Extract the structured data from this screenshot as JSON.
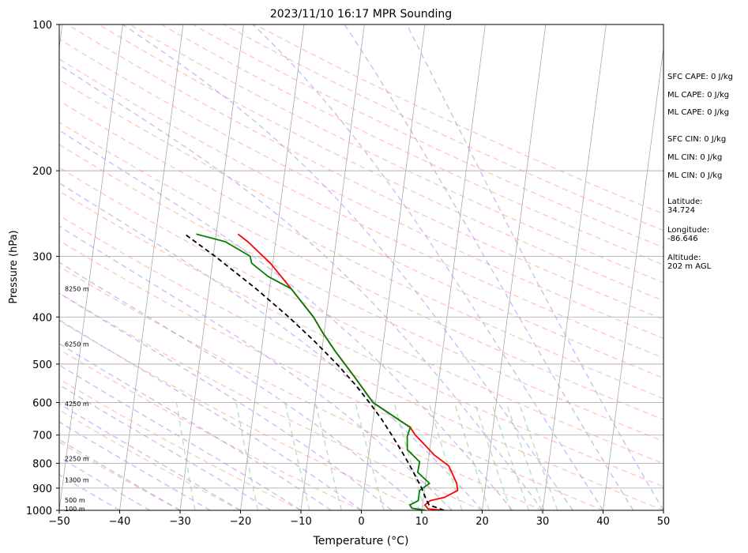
{
  "chart_data": {
    "type": "line",
    "title": "2023/11/10 16:17 MPR Sounding",
    "xlabel": "Temperature (°C)",
    "ylabel": "Pressure (hPa)",
    "xlim": [
      -50,
      50
    ],
    "ylim": [
      1000,
      100
    ],
    "y_scale": "log",
    "skew": "skew-T",
    "grid": true,
    "x_ticks": [
      -50,
      -40,
      -30,
      -20,
      -10,
      0,
      10,
      20,
      30,
      40,
      50
    ],
    "x_tick_labels": [
      "−50",
      "−40",
      "−30",
      "−20",
      "−10",
      "0",
      "10",
      "20",
      "30",
      "40",
      "50"
    ],
    "y_ticks": [
      100,
      200,
      300,
      400,
      500,
      600,
      700,
      800,
      900,
      1000
    ],
    "y_tick_labels": [
      "100",
      "200",
      "300",
      "400",
      "500",
      "600",
      "700",
      "800",
      "900",
      "1000"
    ],
    "height_labels": [
      {
        "text": "8250 m",
        "p": 350
      },
      {
        "text": "6250 m",
        "p": 455
      },
      {
        "text": "4250 m",
        "p": 603
      },
      {
        "text": "2250 m",
        "p": 783
      },
      {
        "text": "1300 m",
        "p": 866
      },
      {
        "text": "500 m",
        "p": 952
      },
      {
        "text": "100 m",
        "p": 992
      }
    ],
    "series": [
      {
        "color": "#ff0000",
        "points": [
          [
            1000,
            13.7
          ],
          [
            993,
            11
          ],
          [
            975,
            10.4
          ],
          [
            955,
            11.2
          ],
          [
            940,
            13.5
          ],
          [
            910,
            15.5
          ],
          [
            880,
            15.2
          ],
          [
            850,
            14.5
          ],
          [
            810,
            13.5
          ],
          [
            770,
            10.9
          ],
          [
            730,
            8.9
          ],
          [
            700,
            7.3
          ],
          [
            675,
            6.3
          ],
          [
            600,
            -0.4
          ],
          [
            530,
            -4.1
          ],
          [
            470,
            -7.8
          ],
          [
            430,
            -10.3
          ],
          [
            400,
            -12.1
          ],
          [
            350,
            -16.4
          ],
          [
            310,
            -20.4
          ],
          [
            280,
            -24.6
          ],
          [
            270,
            -26.4
          ]
        ]
      },
      {
        "color": "#008000",
        "points": [
          [
            1000,
            10.6
          ],
          [
            990,
            8.3
          ],
          [
            975,
            7.9
          ],
          [
            955,
            9.2
          ],
          [
            910,
            9.2
          ],
          [
            880,
            10.7
          ],
          [
            835,
            8.5
          ],
          [
            795,
            8.6
          ],
          [
            750,
            6.3
          ],
          [
            705,
            6.0
          ],
          [
            675,
            6.3
          ],
          [
            600,
            -0.4
          ],
          [
            530,
            -4.1
          ],
          [
            470,
            -7.8
          ],
          [
            430,
            -10.3
          ],
          [
            400,
            -12.1
          ],
          [
            350,
            -16.4
          ],
          [
            330,
            -20.5
          ],
          [
            310,
            -23.5
          ],
          [
            300,
            -23.9
          ],
          [
            280,
            -28.3
          ],
          [
            270,
            -33.3
          ]
        ]
      },
      {
        "color": "#000000",
        "dashed": true,
        "points": [
          [
            1000,
            13.7
          ],
          [
            975,
            11.1
          ],
          [
            950,
            10.5
          ],
          [
            900,
            9.5
          ],
          [
            850,
            8.2
          ],
          [
            800,
            6.8
          ],
          [
            750,
            5.2
          ],
          [
            700,
            3.4
          ],
          [
            650,
            1.4
          ],
          [
            600,
            -1.0
          ],
          [
            550,
            -3.8
          ],
          [
            500,
            -7.2
          ],
          [
            450,
            -11.3
          ],
          [
            400,
            -16.2
          ],
          [
            350,
            -22.2
          ],
          [
            300,
            -29.7
          ],
          [
            270,
            -35.2
          ]
        ]
      }
    ]
  },
  "side_labels": [
    {
      "text": "SFC CAPE: 0 J/kg"
    },
    {
      "text": "ML CAPE: 0 J/kg"
    },
    {
      "text": "ML CAPE: 0 J/kg"
    },
    {
      "text": "SFC CIN: 0 J/kg"
    },
    {
      "text": "ML CIN: 0 J/kg"
    },
    {
      "text": "ML CIN: 0 J/kg"
    },
    {
      "text": "Latitude:\n34.724"
    },
    {
      "text": "Longitude:\n-86.646"
    },
    {
      "text": "Altitude:\n202 m AGL"
    }
  ],
  "colors": {
    "isotherm": "#a8a8a8",
    "dry_adiabat": "#ff9999",
    "moist_adiabat": "#9a8cf2",
    "mixing_ratio": "#8fc98f"
  }
}
